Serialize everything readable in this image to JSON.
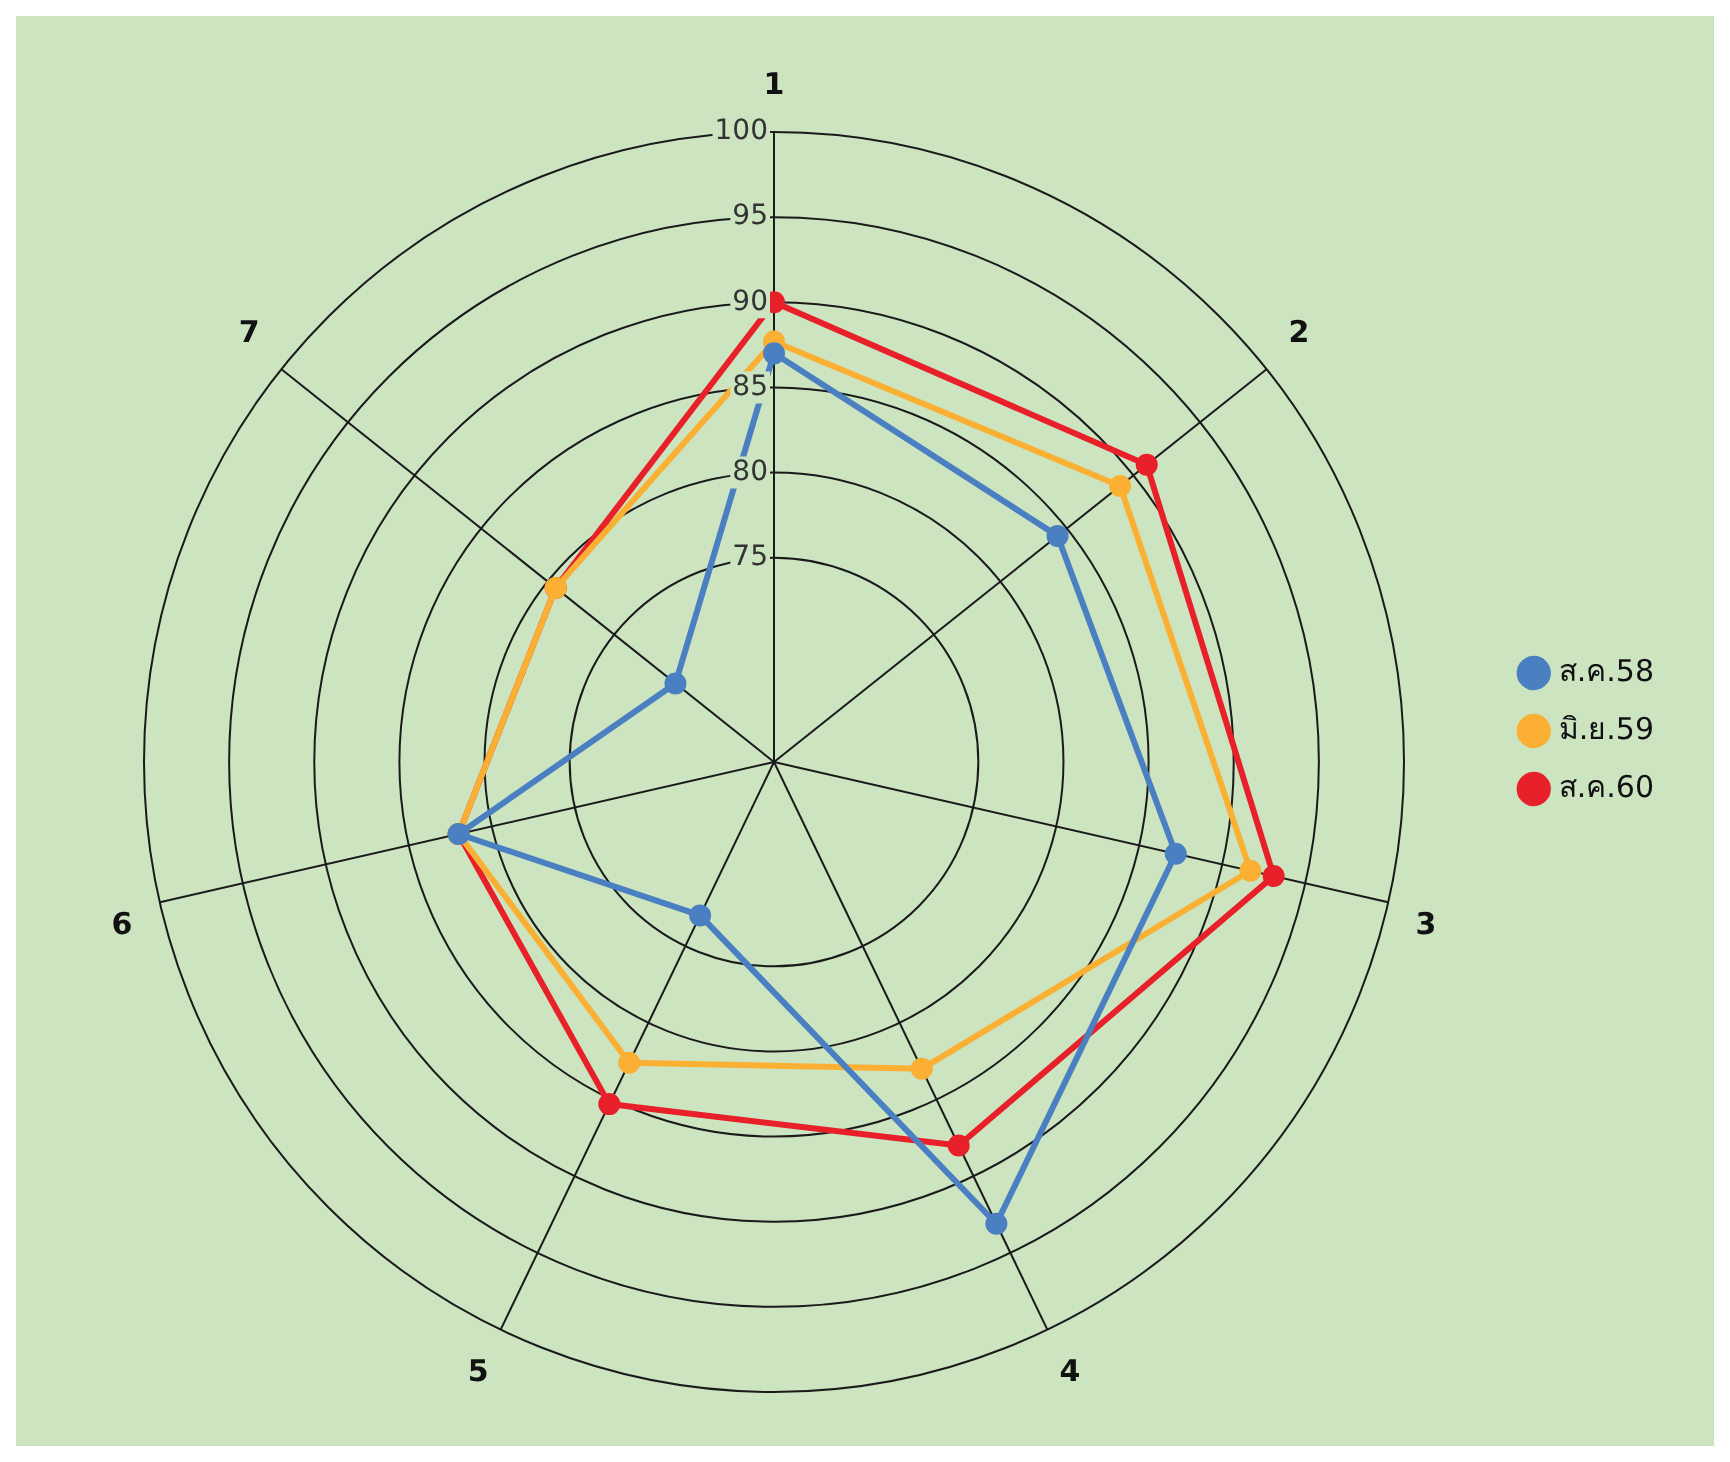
{
  "chart_data": {
    "type": "radar",
    "categories": [
      "1",
      "2",
      "3",
      "4",
      "5",
      "6",
      "7"
    ],
    "series": [
      {
        "name": "ส.ค.58",
        "color": "#4a7fc1",
        "values": [
          87,
          84.3,
          87.2,
          93.1,
          73,
          82,
          70.4
        ]
      },
      {
        "name": "มิ.ย.59",
        "color": "#fbb034",
        "values": [
          87.7,
          89,
          91.7,
          83,
          82.6,
          82,
          79.4
        ]
      },
      {
        "name": "ส.ค.60",
        "color": "#e8202a",
        "values": [
          90,
          91,
          93.1,
          88,
          85.3,
          82,
          79.4
        ]
      }
    ],
    "ylim": [
      63,
      100
    ],
    "yticks": [
      75,
      80,
      85,
      90,
      95,
      100
    ],
    "legend": "right",
    "marker": "circle",
    "grid": true
  }
}
